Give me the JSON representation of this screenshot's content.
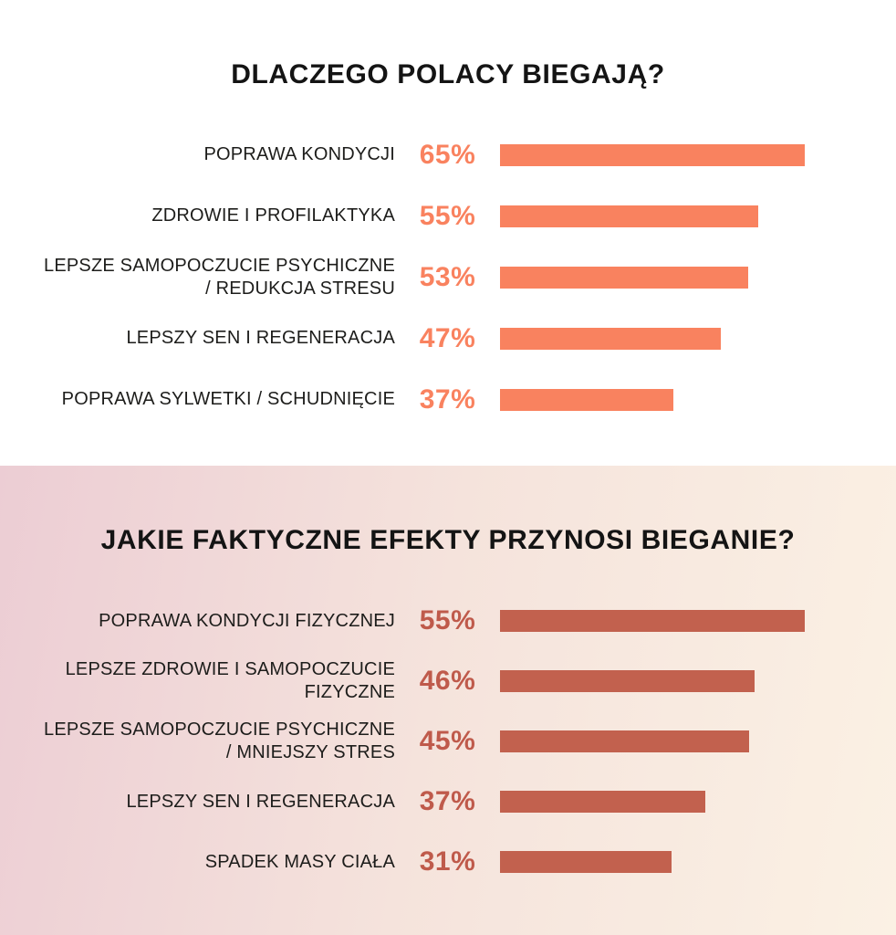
{
  "theme": {
    "section1_bg": "#ffffff",
    "section2_bg_from": "#eccdd4",
    "section2_bg_mid": "#f5e3dc",
    "section2_bg_to": "#fbf1e4",
    "title_color": "#141414",
    "label_color": "#1d1d1b"
  },
  "chart_data": [
    {
      "type": "bar",
      "orientation": "horizontal",
      "title": "DLACZEGO POLACY BIEGAJĄ?",
      "unit": "%",
      "bar_color": "#f9825f",
      "value_color": "#f9825f",
      "xlim": [
        0,
        65
      ],
      "categories": [
        "POPRAWA KONDYCJI",
        "ZDROWIE I PROFILAKTYKA",
        "LEPSZE SAMOPOCZUCIE PSYCHICZNE\n/ REDUKCJA STRESU",
        "LEPSZY SEN I REGENERACJA",
        "POPRAWA SYLWETKI / SCHUDNIĘCIE"
      ],
      "values": [
        65,
        55,
        53,
        47,
        37
      ],
      "value_labels": [
        "65%",
        "55%",
        "53%",
        "47%",
        "37%"
      ]
    },
    {
      "type": "bar",
      "orientation": "horizontal",
      "title": "JAKIE FAKTYCZNE EFEKTY PRZYNOSI BIEGANIE?",
      "unit": "%",
      "bar_color": "#c2614e",
      "value_color": "#bf5a4b",
      "xlim": [
        0,
        55
      ],
      "categories": [
        "POPRAWA KONDYCJI FIZYCZNEJ",
        "LEPSZE ZDROWIE I SAMOPOCZUCIE\nFIZYCZNE",
        "LEPSZE SAMOPOCZUCIE PSYCHICZNE\n/ MNIEJSZY STRES",
        "LEPSZY SEN I REGENERACJA",
        "SPADEK MASY CIAŁA"
      ],
      "values": [
        55,
        46,
        45,
        37,
        31
      ],
      "value_labels": [
        "55%",
        "46%",
        "45%",
        "37%",
        "31%"
      ]
    }
  ]
}
